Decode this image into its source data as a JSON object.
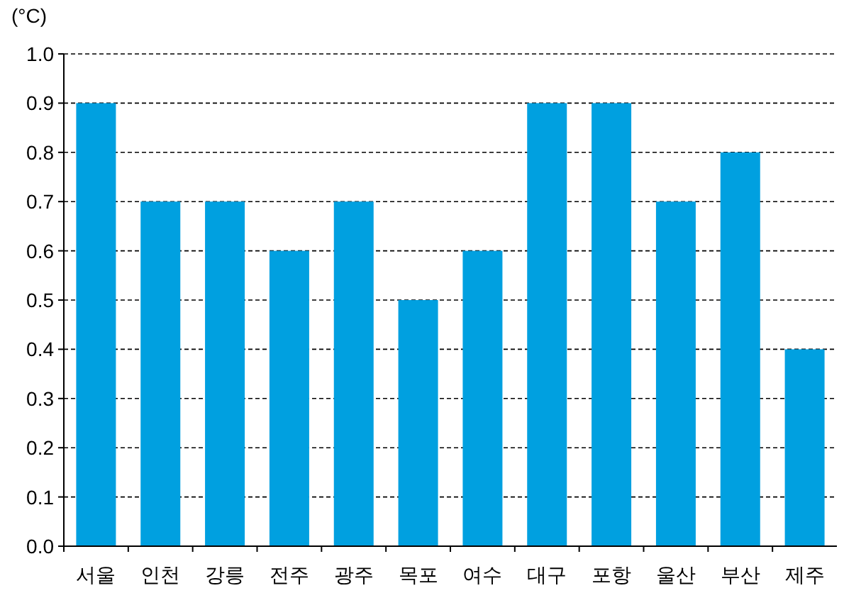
{
  "chart_data": {
    "type": "bar",
    "ylabel": "(°C)",
    "categories": [
      "서울",
      "인천",
      "강릉",
      "전주",
      "광주",
      "목포",
      "여수",
      "대구",
      "포항",
      "울산",
      "부산",
      "제주"
    ],
    "values": [
      0.9,
      0.7,
      0.7,
      0.6,
      0.7,
      0.5,
      0.6,
      0.9,
      0.9,
      0.7,
      0.8,
      0.4
    ],
    "color": "#00a0e0",
    "ylim": [
      0,
      1.0
    ],
    "yticks": [
      {
        "value": 0,
        "label": "0.0"
      },
      {
        "value": 0.1,
        "label": "0.1"
      },
      {
        "value": 0.2,
        "label": "0.2"
      },
      {
        "value": 0.3,
        "label": "0.3"
      },
      {
        "value": 0.4,
        "label": "0.4"
      },
      {
        "value": 0.5,
        "label": "0.5"
      },
      {
        "value": 0.6,
        "label": "0.6"
      },
      {
        "value": 0.7,
        "label": "0.7"
      },
      {
        "value": 0.8,
        "label": "0.8"
      },
      {
        "value": 0.9,
        "label": "0.9"
      },
      {
        "value": 1.0,
        "label": "1.0"
      }
    ],
    "grid": "y"
  }
}
